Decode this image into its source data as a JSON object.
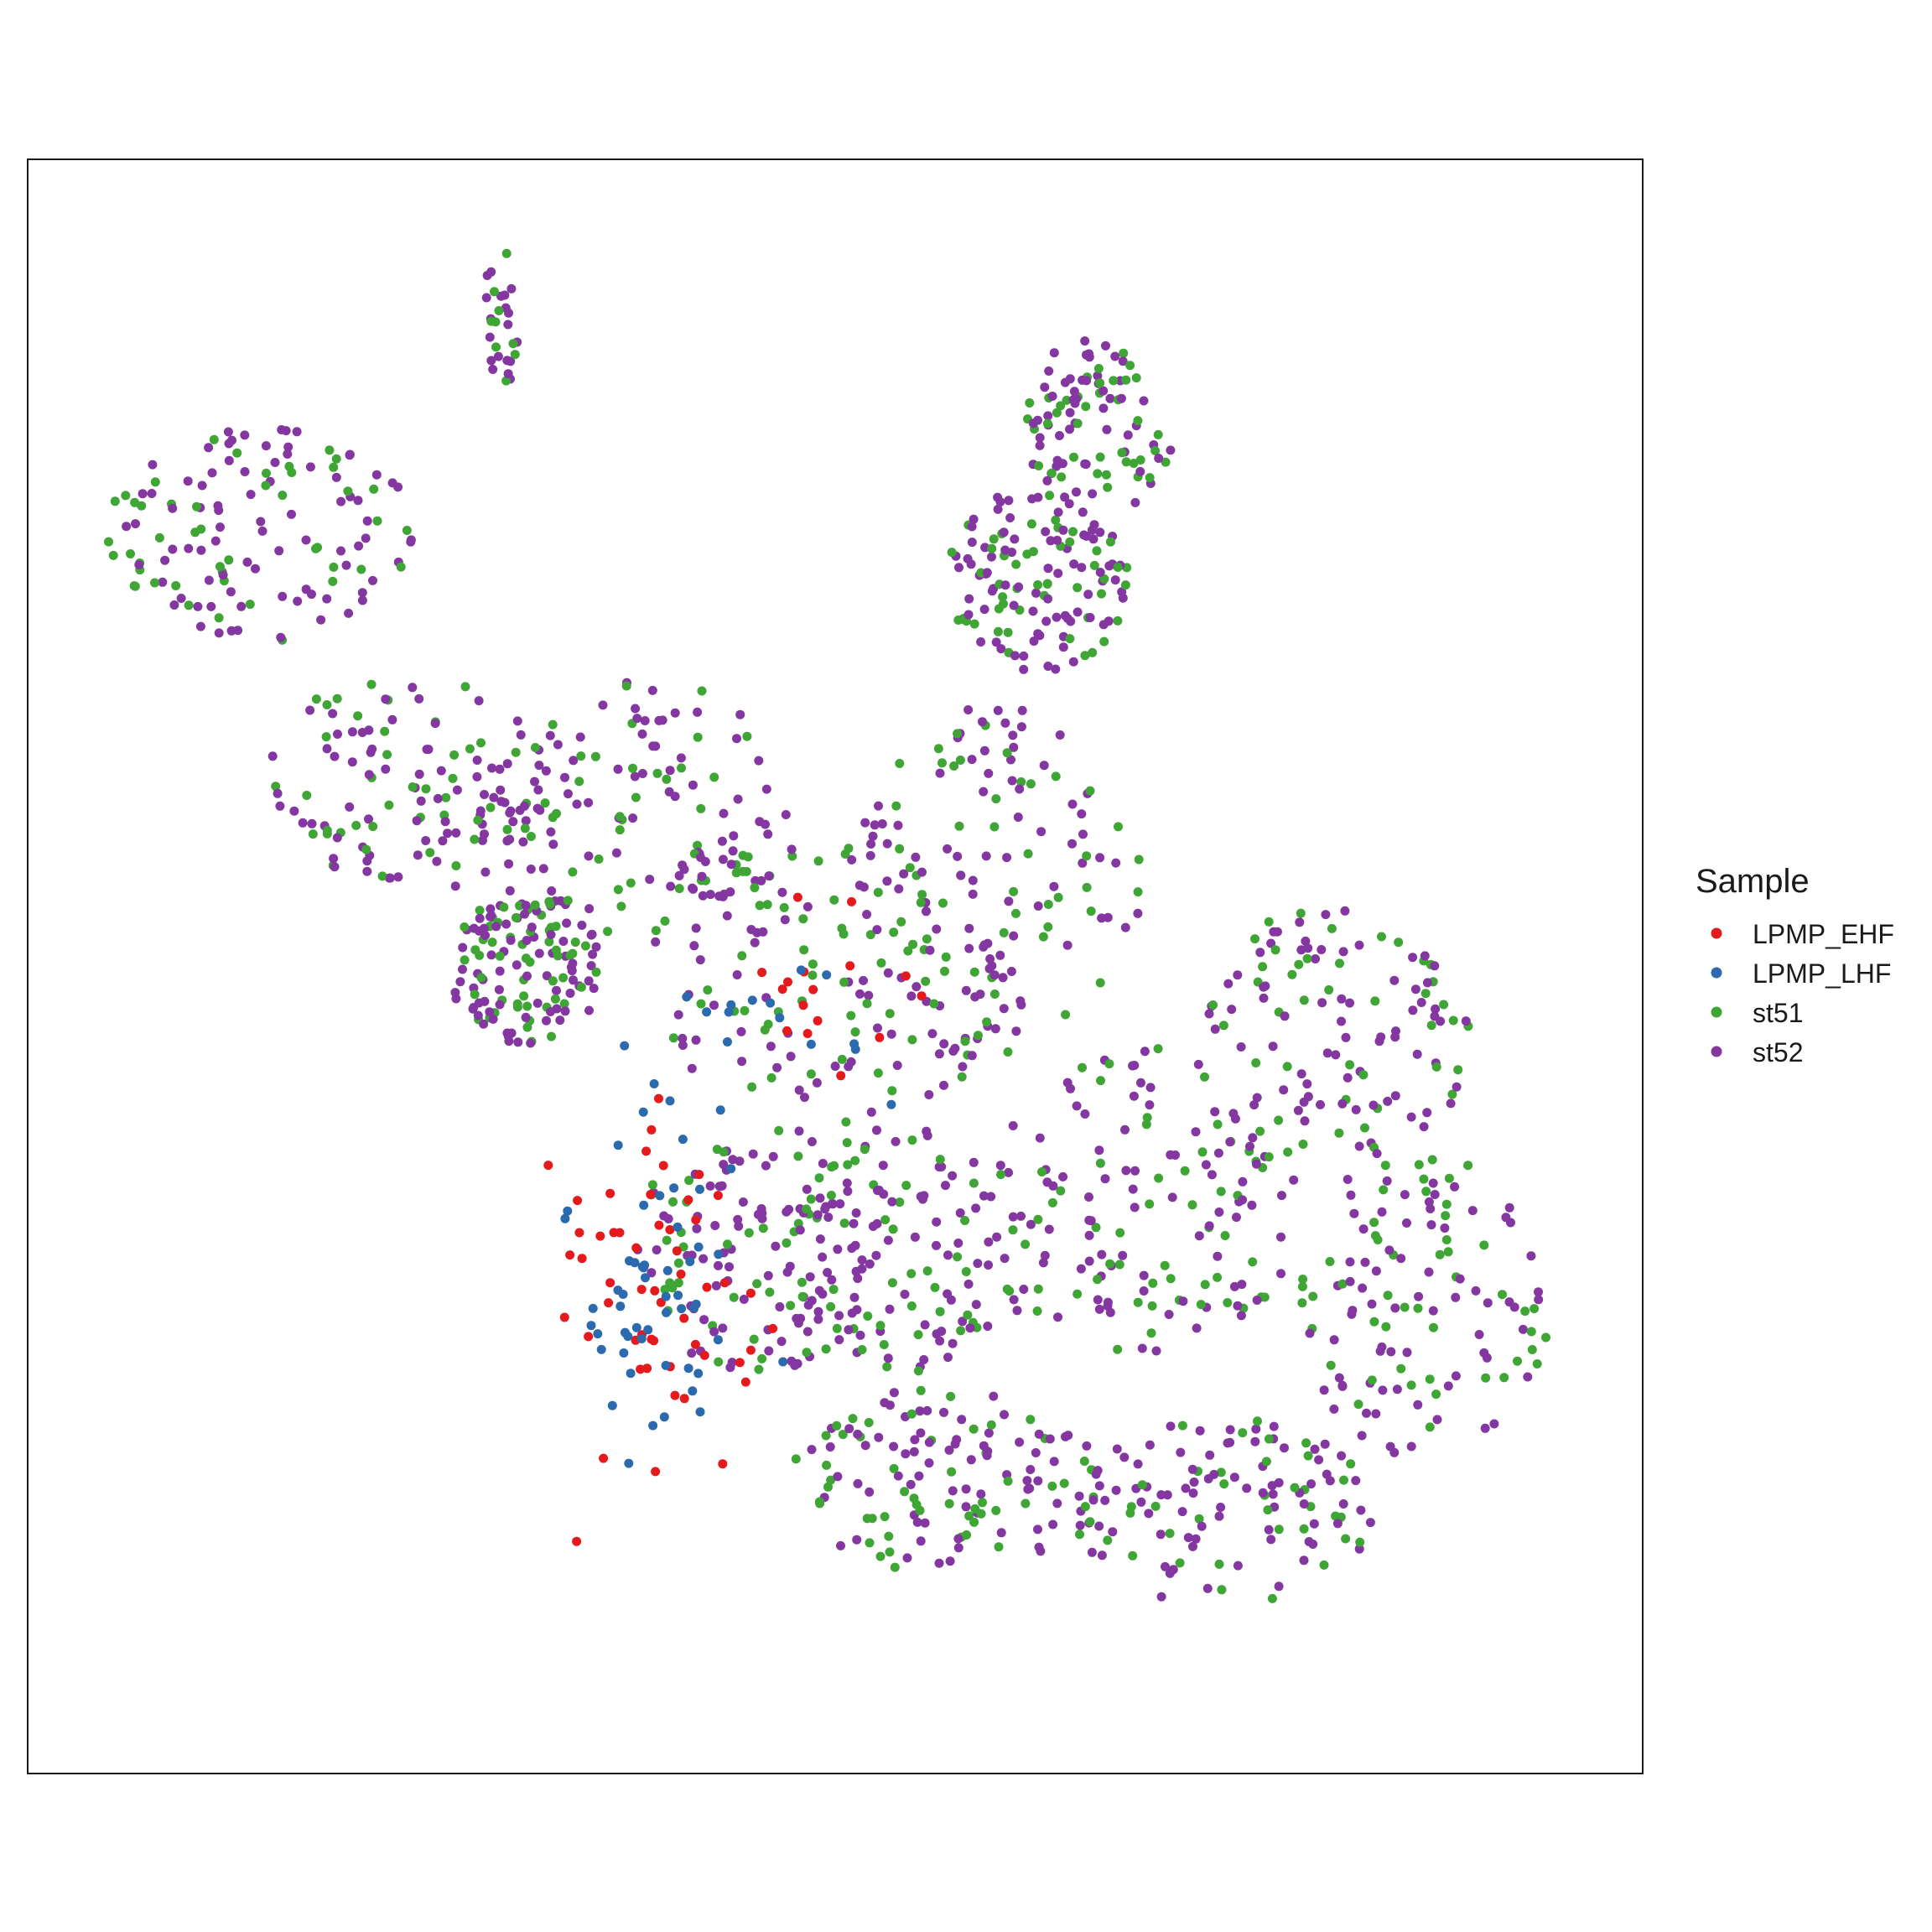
{
  "chart_data": {
    "type": "scatter",
    "title": "",
    "xlabel": "",
    "ylabel": "",
    "xlim": [
      0,
      100
    ],
    "ylim": [
      0,
      100
    ],
    "grid": false,
    "axes_visible": false,
    "legend": {
      "title": "Sample",
      "placement": "right"
    },
    "series": [
      {
        "name": "LPMP_EHF",
        "color": "#E41A1C",
        "cluster_points": 70
      },
      {
        "name": "LPMP_LHF",
        "color": "#2C6AAE",
        "cluster_points": 70
      },
      {
        "name": "st51",
        "color": "#3FA535",
        "cluster_points": 700
      },
      {
        "name": "st52",
        "color": "#8437A0",
        "cluster_points": 1200
      }
    ],
    "regions": {
      "st51_st52": [
        {
          "cx": 13,
          "cy": 78,
          "rx": 10,
          "ry": 7
        },
        {
          "cx": 23,
          "cy": 62,
          "rx": 10,
          "ry": 7
        },
        {
          "cx": 37,
          "cy": 60,
          "rx": 10,
          "ry": 9
        },
        {
          "cx": 50,
          "cy": 50,
          "rx": 12,
          "ry": 10
        },
        {
          "cx": 63,
          "cy": 75,
          "rx": 6,
          "ry": 6
        },
        {
          "cx": 60,
          "cy": 55,
          "rx": 10,
          "ry": 12
        },
        {
          "cx": 70,
          "cy": 35,
          "rx": 10,
          "ry": 10
        },
        {
          "cx": 82,
          "cy": 45,
          "rx": 9,
          "ry": 9
        },
        {
          "cx": 88,
          "cy": 28,
          "rx": 8,
          "ry": 10
        },
        {
          "cx": 75,
          "cy": 15,
          "rx": 10,
          "ry": 6
        },
        {
          "cx": 57,
          "cy": 17,
          "rx": 10,
          "ry": 6
        },
        {
          "cx": 45,
          "cy": 32,
          "rx": 8,
          "ry": 8
        },
        {
          "cx": 55,
          "cy": 32,
          "rx": 8,
          "ry": 8
        },
        {
          "cx": 67,
          "cy": 85,
          "rx": 5,
          "ry": 6
        },
        {
          "cx": 30,
          "cy": 50,
          "rx": 5,
          "ry": 5
        }
      ],
      "lpmp": {
        "cx": 39,
        "cy": 30,
        "rx": 5,
        "ry": 10
      },
      "lpmp_upper": {
        "cx": 47,
        "cy": 47,
        "rx": 6,
        "ry": 5
      },
      "island": {
        "cx": 28.5,
        "cy": 92,
        "rx": 1.2,
        "ry": 5
      }
    }
  }
}
